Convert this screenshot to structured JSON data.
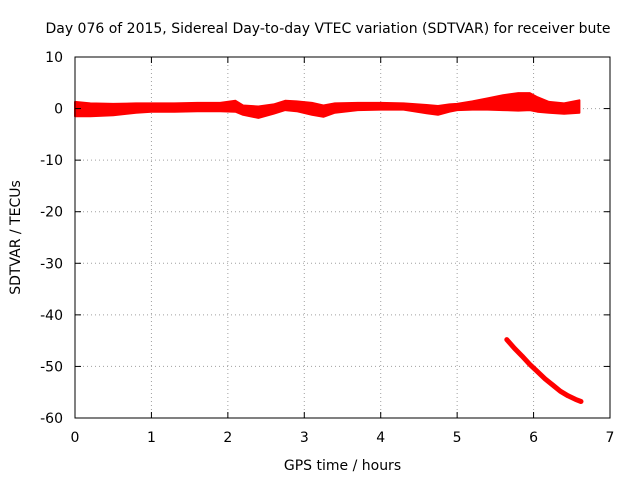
{
  "chart_data": {
    "type": "line",
    "title": "Day 076 of 2015, Sidereal Day-to-day VTEC variation (SDTVAR) for receiver bute",
    "xlabel": "GPS time / hours",
    "ylabel": "SDTVAR / TECUs",
    "xlim": [
      0,
      7
    ],
    "ylim": [
      -60,
      10
    ],
    "xticks": [
      0,
      1,
      2,
      3,
      4,
      5,
      6,
      7
    ],
    "yticks": [
      10,
      0,
      -10,
      -20,
      -30,
      -40,
      -50,
      -60
    ],
    "grid": true,
    "series_color": "#ff0000",
    "series": [
      {
        "name": "near-zero band",
        "band": true,
        "x": [
          0.0,
          0.2,
          0.5,
          0.8,
          1.0,
          1.3,
          1.6,
          1.9,
          2.1,
          2.2,
          2.4,
          2.6,
          2.75,
          2.9,
          3.1,
          3.25,
          3.4,
          3.7,
          4.0,
          4.3,
          4.6,
          4.75,
          4.9,
          5.0,
          5.2,
          5.4,
          5.6,
          5.8,
          5.95,
          6.05,
          6.2,
          6.4,
          6.6
        ],
        "low": [
          -1.5,
          -1.5,
          -1.3,
          -0.8,
          -0.6,
          -0.6,
          -0.5,
          -0.5,
          -0.6,
          -1.2,
          -1.8,
          -1.0,
          -0.3,
          -0.5,
          -1.2,
          -1.6,
          -0.8,
          -0.3,
          -0.2,
          -0.2,
          -0.9,
          -1.2,
          -0.6,
          -0.3,
          -0.2,
          -0.2,
          -0.3,
          -0.4,
          -0.3,
          -0.6,
          -0.8,
          -1.0,
          -0.8
        ],
        "high": [
          1.3,
          1.0,
          0.9,
          1.0,
          1.0,
          1.0,
          1.1,
          1.1,
          1.5,
          0.6,
          0.4,
          0.8,
          1.5,
          1.4,
          1.1,
          0.6,
          1.0,
          1.1,
          1.1,
          1.0,
          0.7,
          0.5,
          0.8,
          0.9,
          1.4,
          2.0,
          2.6,
          3.0,
          3.0,
          2.2,
          1.3,
          1.0,
          1.6
        ]
      },
      {
        "name": "descending segment",
        "band": false,
        "x": [
          5.65,
          5.75,
          5.85,
          5.95,
          6.05,
          6.15,
          6.25,
          6.35,
          6.45,
          6.55,
          6.62
        ],
        "y": [
          -44.8,
          -46.5,
          -48.0,
          -49.6,
          -51.0,
          -52.4,
          -53.6,
          -54.8,
          -55.7,
          -56.4,
          -56.8
        ]
      }
    ]
  }
}
